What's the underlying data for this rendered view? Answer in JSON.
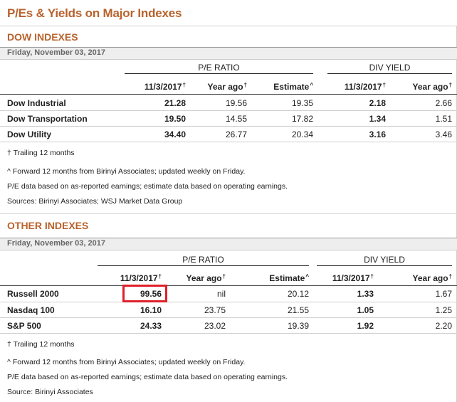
{
  "page_title": "P/Es & Yields on Major Indexes",
  "trailing_dagger": "†",
  "dow": {
    "title": "DOW INDEXES",
    "date": "Friday, November 03, 2017",
    "group_pe": "P/E RATIO",
    "group_div": "DIV YIELD",
    "columns": [
      "11/3/2017",
      "Year ago",
      "Estimate",
      "11/3/2017",
      "Year ago"
    ],
    "column_marks": [
      "†",
      "†",
      "^",
      "†",
      "†"
    ],
    "rows": [
      {
        "name": "Dow Industrial",
        "values": [
          "21.28",
          "19.56",
          "19.35",
          "2.18",
          "2.66"
        ]
      },
      {
        "name": "Dow Transportation",
        "values": [
          "19.50",
          "14.55",
          "17.82",
          "1.34",
          "1.51"
        ]
      },
      {
        "name": "Dow Utility",
        "values": [
          "34.40",
          "26.77",
          "20.34",
          "3.16",
          "3.46"
        ]
      }
    ],
    "footnotes": [
      "† Trailing 12 months",
      "^ Forward 12 months from Birinyi Associates; updated weekly on Friday.",
      "P/E data based on as-reported earnings; estimate data based on operating earnings.",
      "Sources: Birinyi Associates; WSJ Market Data Group"
    ]
  },
  "other": {
    "title": "OTHER INDEXES",
    "date": "Friday, November 03, 2017",
    "group_pe": "P/E RATIO",
    "group_div": "DIV YIELD",
    "columns": [
      "11/3/2017",
      "Year ago",
      "Estimate",
      "11/3/2017",
      "Year ago"
    ],
    "column_marks": [
      "†",
      "†",
      "^",
      "†",
      "†"
    ],
    "rows": [
      {
        "name": "Russell 2000",
        "values": [
          "99.56",
          "nil",
          "20.12",
          "1.33",
          "1.67"
        ]
      },
      {
        "name": "Nasdaq 100",
        "values": [
          "16.10",
          "23.75",
          "21.55",
          "1.05",
          "1.25"
        ]
      },
      {
        "name": "S&P 500",
        "values": [
          "24.33",
          "23.02",
          "19.39",
          "1.92",
          "2.20"
        ]
      }
    ],
    "footnotes": [
      "† Trailing 12 months",
      "^ Forward 12 months from Birinyi Associates; updated weekly on Friday.",
      "P/E data based on as-reported earnings; estimate data based on operating earnings.",
      "Source: Birinyi Associates"
    ]
  },
  "highlight_color": "#e0202a",
  "accent_color": "#b8622c"
}
